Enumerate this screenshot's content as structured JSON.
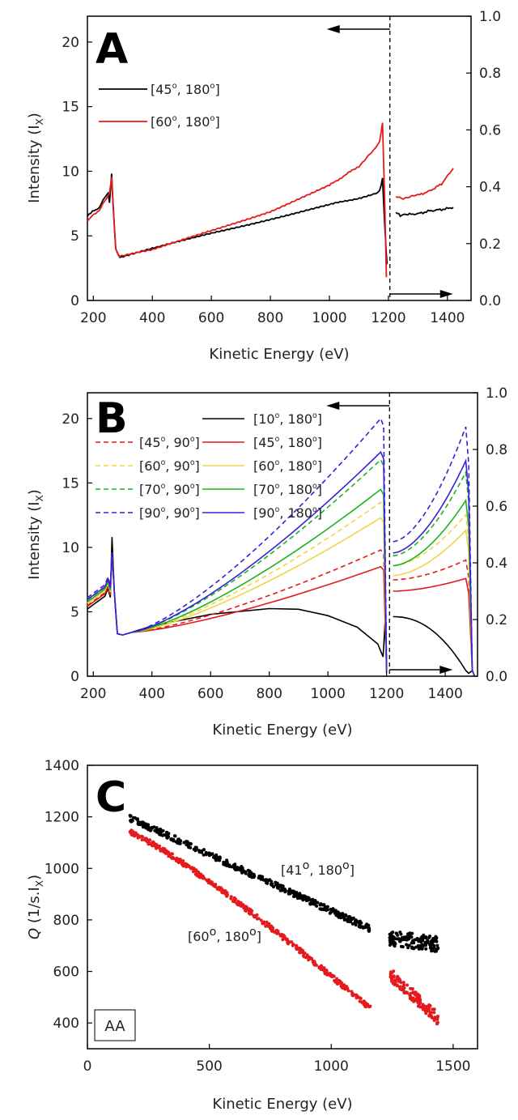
{
  "chart_data": [
    {
      "panel": "A",
      "type": "line",
      "xlabel": "Kinetic Energy (eV)",
      "ylabel": "Intensity (I",
      "ylabel_sub": "X",
      "ylabel_close": ")",
      "xlim": [
        180,
        1480
      ],
      "ylim": [
        0,
        22
      ],
      "y2lim": [
        0,
        1.0
      ],
      "xticks": [
        "200",
        "400",
        "600",
        "800",
        "1000",
        "1200",
        "1400"
      ],
      "yticks": [
        "0",
        "5",
        "10",
        "15",
        "20"
      ],
      "y2ticks": [
        "0.0",
        "0.2",
        "0.4",
        "0.6",
        "0.8",
        "1.0"
      ],
      "legend_position": "top-left",
      "cutoff_x": 1205,
      "series": [
        {
          "name": "[45°, 180°]",
          "label_main": "[45",
          "label_mid": ", 180",
          "label_end": "]",
          "color": "#000000",
          "dash": false,
          "points": [
            [
              180,
              6.6
            ],
            [
              220,
              7.2
            ],
            [
              240,
              8.0
            ],
            [
              250,
              8.3
            ],
            [
              255,
              7.6
            ],
            [
              262,
              9.8
            ],
            [
              268,
              7.0
            ],
            [
              276,
              4.0
            ],
            [
              290,
              3.3
            ],
            [
              400,
              4.0
            ],
            [
              600,
              5.2
            ],
            [
              800,
              6.3
            ],
            [
              1000,
              7.4
            ],
            [
              1150,
              8.2
            ],
            [
              1170,
              8.5
            ],
            [
              1180,
              9.4
            ],
            [
              1187,
              6.0
            ],
            [
              1195,
              2.8
            ]
          ]
        },
        {
          "name": "[60°, 180°]",
          "label_main": "[60",
          "label_mid": ", 180",
          "label_end": "]",
          "color": "#e41a1c",
          "dash": false,
          "points": [
            [
              180,
              6.2
            ],
            [
              220,
              7.0
            ],
            [
              240,
              7.7
            ],
            [
              255,
              8.3
            ],
            [
              262,
              9.5
            ],
            [
              268,
              7.0
            ],
            [
              276,
              4.0
            ],
            [
              290,
              3.4
            ],
            [
              400,
              3.9
            ],
            [
              600,
              5.4
            ],
            [
              800,
              6.9
            ],
            [
              1000,
              8.9
            ],
            [
              1100,
              10.4
            ],
            [
              1150,
              11.6
            ],
            [
              1170,
              12.3
            ],
            [
              1180,
              13.7
            ],
            [
              1187,
              8.0
            ],
            [
              1193,
              1.8
            ]
          ]
        },
        {
          "name": "[45°, 180°] secondary",
          "color": "#000000",
          "dash": false,
          "secondary": true,
          "points": [
            [
              1225,
              0.31
            ],
            [
              1240,
              0.3
            ],
            [
              1260,
              0.302
            ],
            [
              1300,
              0.305
            ],
            [
              1340,
              0.315
            ],
            [
              1380,
              0.32
            ],
            [
              1420,
              0.327
            ]
          ]
        },
        {
          "name": "[60°, 180°] secondary",
          "color": "#e41a1c",
          "dash": false,
          "secondary": true,
          "points": [
            [
              1225,
              0.365
            ],
            [
              1250,
              0.36
            ],
            [
              1300,
              0.37
            ],
            [
              1340,
              0.385
            ],
            [
              1380,
              0.41
            ],
            [
              1420,
              0.465
            ]
          ]
        }
      ]
    },
    {
      "panel": "B",
      "type": "line",
      "xlabel": "Kinetic Energy (eV)",
      "ylabel": "Intensity (I",
      "ylabel_sub": "X",
      "ylabel_close": ")",
      "xlim": [
        180,
        1510
      ],
      "ylim": [
        0,
        22
      ],
      "y2lim": [
        0,
        1.0
      ],
      "xticks": [
        "200",
        "400",
        "600",
        "800",
        "1000",
        "1200",
        "1400"
      ],
      "yticks": [
        "0",
        "5",
        "10",
        "15",
        "20"
      ],
      "y2ticks": [
        "0.0",
        "0.2",
        "0.4",
        "0.6",
        "0.8",
        "1.0"
      ],
      "legend_position": "top",
      "cutoff_x": 1210,
      "series": [
        {
          "name": "[10°, 180°]",
          "label_main": "[10",
          "label_mid": ", 180",
          "label_end": "]",
          "color": "#000000",
          "dash": false,
          "peak": 5.3,
          "sec_start": 0.21,
          "sec_end": 0.02
        },
        {
          "name": "[45°, 90°]",
          "label_main": "[45",
          "label_mid": ", 90",
          "label_end": "]",
          "color": "#e41a1c",
          "dash": true,
          "peak": 9.8,
          "sec_start": 0.34,
          "sec_end": 0.41
        },
        {
          "name": "[45°, 180°]",
          "label_main": "[45",
          "label_mid": ", 180",
          "label_end": "]",
          "color": "#e41a1c",
          "dash": false,
          "peak": 8.5,
          "sec_start": 0.3,
          "sec_end": 0.345
        },
        {
          "name": "[60°, 90°]",
          "label_main": "[60",
          "label_mid": ", 90",
          "label_end": "]",
          "color": "#f0d54a",
          "dash": true,
          "peak": 13.5,
          "sec_start": 0.39,
          "sec_end": 0.57
        },
        {
          "name": "[60°, 180°]",
          "label_main": "[60",
          "label_mid": ", 180",
          "label_end": "]",
          "color": "#f0d54a",
          "dash": false,
          "peak": 12.3,
          "sec_start": 0.355,
          "sec_end": 0.515
        },
        {
          "name": "[70°, 90°]",
          "label_main": "[70",
          "label_mid": ", 90",
          "label_end": "]",
          "color": "#1db31d",
          "dash": true,
          "peak": 16.8,
          "sec_start": 0.425,
          "sec_end": 0.72
        },
        {
          "name": "[70°, 180°]",
          "label_main": "[70",
          "label_mid": ", 180",
          "label_end": "]",
          "color": "#1db31d",
          "dash": false,
          "peak": 14.5,
          "sec_start": 0.39,
          "sec_end": 0.62
        },
        {
          "name": "[90°, 90°]",
          "label_main": "[90",
          "label_mid": ", 90",
          "label_end": "]",
          "color": "#3a1fd8",
          "dash": true,
          "peak": 20.0,
          "sec_start": 0.475,
          "sec_end": 0.88
        },
        {
          "name": "[90°, 180°]",
          "label_main": "[90",
          "label_mid": ", 180",
          "label_end": "]",
          "color": "#3a1fd8",
          "dash": false,
          "peak": 17.4,
          "sec_start": 0.435,
          "sec_end": 0.76
        }
      ]
    },
    {
      "panel": "C",
      "type": "scatter",
      "xlabel": "Kinetic Energy (eV)",
      "ylabel_q": "Q",
      "ylabel_rest": " (1/s.I",
      "ylabel_sub": "X",
      "ylabel_close": ")",
      "xlim": [
        0,
        1600
      ],
      "ylim": [
        300,
        1400
      ],
      "xticks": [
        "0",
        "500",
        "1000",
        "1500"
      ],
      "yticks": [
        "400",
        "600",
        "800",
        "1000",
        "1200",
        "1400"
      ],
      "annotation_box": "AA",
      "series": [
        {
          "name": "[41°, 180°]",
          "label_main": "[41",
          "label_mid": ", 180",
          "label_end": "]",
          "color": "#000000",
          "segments": [
            {
              "x": [
                175,
                1160
              ],
              "y": [
                1195,
                765
              ],
              "noise": 12
            },
            {
              "x": [
                1240,
                1440
              ],
              "y": [
                730,
                705
              ],
              "noise": 30
            }
          ]
        },
        {
          "name": "[60°, 180°]",
          "label_main": "[60",
          "label_mid": ", 180",
          "label_end": "]",
          "color": "#e41a1c",
          "segments": [
            {
              "x": [
                175,
                1160
              ],
              "y": [
                1140,
                455
              ],
              "noise": 10
            },
            {
              "x": [
                1240,
                1440
              ],
              "y": [
                590,
                415
              ],
              "noise": 25
            }
          ]
        }
      ]
    }
  ],
  "panel_letters": {
    "a": "A",
    "b": "B",
    "c": "C"
  },
  "degree_sup": "o"
}
